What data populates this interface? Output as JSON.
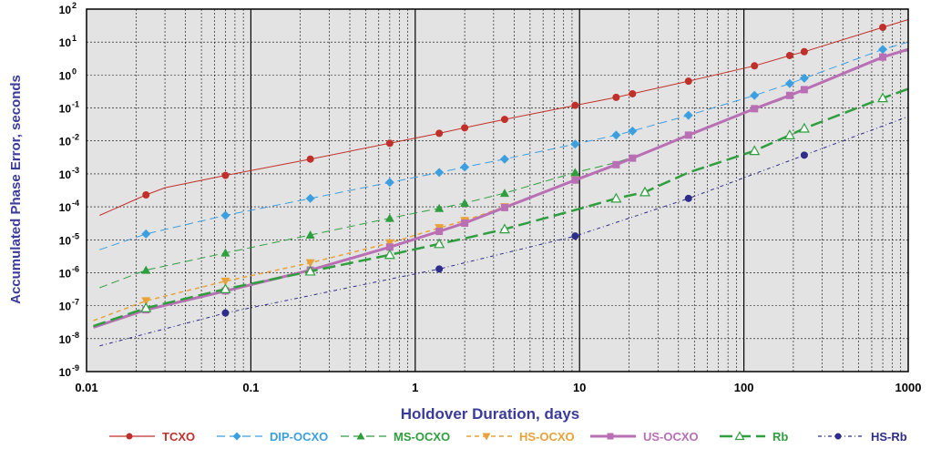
{
  "chart_data": {
    "type": "line",
    "xscale": "log",
    "yscale": "log",
    "xlim": [
      0.01,
      1000
    ],
    "ylim": [
      1e-09,
      100
    ],
    "xlabel": "Holdover Duration, days",
    "ylabel": "Accumulated Phase Error, seconds",
    "xlabel_color": "#3b3b9a",
    "ylabel_color": "#3b3b9a",
    "grid": true,
    "plot_background": "#e3e3e3",
    "legend_position": "bottom",
    "x_ticks": [
      {
        "value": 0.01,
        "label": "0.01"
      },
      {
        "value": 0.1,
        "label": "0.1"
      },
      {
        "value": 1,
        "label": "1"
      },
      {
        "value": 10,
        "label": "10"
      },
      {
        "value": 100,
        "label": "100"
      },
      {
        "value": 1000,
        "label": "1000"
      }
    ],
    "y_ticks": [
      {
        "value": 1e-09,
        "base": "10",
        "exp": "-9"
      },
      {
        "value": 1e-08,
        "base": "10",
        "exp": "-8"
      },
      {
        "value": 1e-07,
        "base": "10",
        "exp": "-7"
      },
      {
        "value": 1e-06,
        "base": "10",
        "exp": "-6"
      },
      {
        "value": 1e-05,
        "base": "10",
        "exp": "-5"
      },
      {
        "value": 0.0001,
        "base": "10",
        "exp": "-4"
      },
      {
        "value": 0.001,
        "base": "10",
        "exp": "-3"
      },
      {
        "value": 0.01,
        "base": "10",
        "exp": "-2"
      },
      {
        "value": 0.1,
        "base": "10",
        "exp": "-1"
      },
      {
        "value": 1,
        "base": "10",
        "exp": "0"
      },
      {
        "value": 10,
        "base": "10",
        "exp": "1"
      },
      {
        "value": 100,
        "base": "10",
        "exp": "2"
      }
    ],
    "series": [
      {
        "name": "TCXO",
        "color": "#c0302a",
        "marker": "circle",
        "dash": "",
        "width": 1,
        "line": [
          [
            0.012,
            5.5e-05
          ],
          [
            0.023,
            0.00023
          ],
          [
            0.03,
            0.00038
          ],
          [
            0.07,
            0.0009
          ],
          [
            0.23,
            0.0028
          ],
          [
            0.7,
            0.0085
          ],
          [
            1.4,
            0.017
          ],
          [
            2,
            0.025
          ],
          [
            3.5,
            0.045
          ],
          [
            9.4,
            0.12
          ],
          [
            16.7,
            0.21
          ],
          [
            21,
            0.27
          ],
          [
            46,
            0.65
          ],
          [
            116,
            1.9
          ],
          [
            190,
            3.9
          ],
          [
            233,
            5.1
          ],
          [
            700,
            28
          ],
          [
            1000,
            48
          ]
        ],
        "markers": [
          [
            0.023,
            0.00023
          ],
          [
            0.07,
            0.0009
          ],
          [
            0.23,
            0.0028
          ],
          [
            0.7,
            0.0085
          ],
          [
            1.4,
            0.017
          ],
          [
            2,
            0.025
          ],
          [
            3.5,
            0.045
          ],
          [
            9.4,
            0.12
          ],
          [
            16.7,
            0.21
          ],
          [
            21,
            0.27
          ],
          [
            46,
            0.65
          ],
          [
            116,
            1.9
          ],
          [
            190,
            3.9
          ],
          [
            233,
            5.1
          ],
          [
            700,
            28
          ]
        ]
      },
      {
        "name": "DIP-OCXO",
        "color": "#3c9fe0",
        "marker": "diamond",
        "dash": "9 5",
        "width": 1,
        "line": [
          [
            0.012,
            5e-06
          ],
          [
            0.023,
            1.5e-05
          ],
          [
            0.07,
            5.5e-05
          ],
          [
            0.23,
            0.00018
          ],
          [
            0.7,
            0.00055
          ],
          [
            1.4,
            0.0011
          ],
          [
            2,
            0.0016
          ],
          [
            3.5,
            0.0028
          ],
          [
            9.4,
            0.008
          ],
          [
            16.7,
            0.015
          ],
          [
            21,
            0.02
          ],
          [
            46,
            0.06
          ],
          [
            116,
            0.24
          ],
          [
            190,
            0.55
          ],
          [
            233,
            0.8
          ],
          [
            700,
            6
          ],
          [
            1000,
            10
          ]
        ],
        "markers": [
          [
            0.023,
            1.5e-05
          ],
          [
            0.07,
            5.5e-05
          ],
          [
            0.23,
            0.00018
          ],
          [
            0.7,
            0.00055
          ],
          [
            1.4,
            0.0011
          ],
          [
            2,
            0.0016
          ],
          [
            3.5,
            0.0028
          ],
          [
            9.4,
            0.008
          ],
          [
            16.7,
            0.015
          ],
          [
            21,
            0.02
          ],
          [
            46,
            0.06
          ],
          [
            116,
            0.24
          ],
          [
            190,
            0.55
          ],
          [
            233,
            0.8
          ],
          [
            700,
            6
          ]
        ]
      },
      {
        "name": "MS-OCXO",
        "color": "#2e9e3e",
        "marker": "triangle",
        "dash": "9 5",
        "width": 1,
        "line": [
          [
            0.012,
            3.5e-07
          ],
          [
            0.023,
            1.2e-06
          ],
          [
            0.07,
            4e-06
          ],
          [
            0.23,
            1.4e-05
          ],
          [
            0.7,
            4.5e-05
          ],
          [
            1.4,
            9e-05
          ],
          [
            2,
            0.00013
          ],
          [
            3.5,
            0.00026
          ],
          [
            9.4,
            0.0011
          ],
          [
            16.7,
            0.0022
          ],
          [
            21,
            0.0032
          ],
          [
            46,
            0.015
          ],
          [
            116,
            0.09
          ],
          [
            190,
            0.22
          ],
          [
            233,
            0.35
          ],
          [
            700,
            3.5
          ],
          [
            1000,
            5.5
          ]
        ],
        "markers": [
          [
            0.023,
            1.2e-06
          ],
          [
            0.07,
            4e-06
          ],
          [
            0.23,
            1.4e-05
          ],
          [
            0.7,
            4.5e-05
          ],
          [
            1.4,
            9e-05
          ],
          [
            2,
            0.00013
          ],
          [
            3.5,
            0.00026
          ],
          [
            9.4,
            0.0011
          ]
        ]
      },
      {
        "name": "HS-OCXO",
        "color": "#e8a23a",
        "marker": "triangle-down",
        "dash": "5 4",
        "width": 1.5,
        "line": [
          [
            0.011,
            3.5e-08
          ],
          [
            0.023,
            1.4e-07
          ],
          [
            0.07,
            5.5e-07
          ],
          [
            0.23,
            2e-06
          ],
          [
            0.7,
            8e-06
          ],
          [
            1.4,
            2.3e-05
          ],
          [
            2,
            3.8e-05
          ],
          [
            3.5,
            0.0001
          ],
          [
            9.4,
            0.00065
          ],
          [
            16.7,
            0.0019
          ],
          [
            21,
            0.003
          ],
          [
            46,
            0.015
          ],
          [
            116,
            0.095
          ],
          [
            190,
            0.24
          ],
          [
            233,
            0.36
          ],
          [
            700,
            3.5
          ],
          [
            1000,
            6
          ]
        ],
        "markers": [
          [
            0.023,
            1.4e-07
          ],
          [
            0.07,
            5.5e-07
          ],
          [
            0.23,
            2e-06
          ],
          [
            0.7,
            8e-06
          ],
          [
            1.4,
            2.3e-05
          ],
          [
            2,
            3.8e-05
          ],
          [
            3.5,
            0.0001
          ],
          [
            9.4,
            0.00065
          ]
        ]
      },
      {
        "name": "US-OCXO",
        "color": "#b86fb4",
        "marker": "square",
        "dash": "",
        "width": 3,
        "line": [
          [
            0.011,
            2.2e-08
          ],
          [
            0.023,
            7.5e-08
          ],
          [
            0.07,
            2.8e-07
          ],
          [
            0.23,
            1.2e-06
          ],
          [
            0.7,
            6e-06
          ],
          [
            1.4,
            1.8e-05
          ],
          [
            2,
            3.2e-05
          ],
          [
            3.5,
            9.5e-05
          ],
          [
            9.4,
            0.00065
          ],
          [
            16.7,
            0.0019
          ],
          [
            21,
            0.003
          ],
          [
            46,
            0.015
          ],
          [
            116,
            0.095
          ],
          [
            190,
            0.24
          ],
          [
            233,
            0.36
          ],
          [
            700,
            3.5
          ],
          [
            1000,
            6
          ]
        ],
        "markers": [
          [
            0.023,
            7.5e-08
          ],
          [
            0.07,
            2.8e-07
          ],
          [
            0.23,
            1.2e-06
          ],
          [
            0.7,
            6e-06
          ],
          [
            1.4,
            1.8e-05
          ],
          [
            2,
            3.2e-05
          ],
          [
            3.5,
            9.5e-05
          ],
          [
            9.4,
            0.00065
          ],
          [
            16.7,
            0.0019
          ],
          [
            21,
            0.003
          ],
          [
            46,
            0.015
          ],
          [
            116,
            0.095
          ],
          [
            190,
            0.24
          ],
          [
            233,
            0.36
          ],
          [
            700,
            3.5
          ]
        ]
      },
      {
        "name": "Rb",
        "color": "#2e9e3e",
        "marker": "triangle-open",
        "dash": "14 6",
        "width": 2.5,
        "line": [
          [
            0.011,
            2.4e-08
          ],
          [
            0.023,
            8.5e-08
          ],
          [
            0.07,
            3.2e-07
          ],
          [
            0.23,
            1.1e-06
          ],
          [
            0.7,
            3.5e-06
          ],
          [
            1.4,
            7.5e-06
          ],
          [
            2,
            1.1e-05
          ],
          [
            3.5,
            2.1e-05
          ],
          [
            9.4,
            8e-05
          ],
          [
            16.7,
            0.00018
          ],
          [
            25,
            0.00028
          ],
          [
            46,
            0.0011
          ],
          [
            116,
            0.005
          ],
          [
            190,
            0.015
          ],
          [
            233,
            0.024
          ],
          [
            700,
            0.2
          ],
          [
            1000,
            0.38
          ]
        ],
        "markers": [
          [
            0.023,
            8.5e-08
          ],
          [
            0.07,
            3.2e-07
          ],
          [
            0.23,
            1.1e-06
          ],
          [
            0.7,
            3.5e-06
          ],
          [
            1.4,
            7.5e-06
          ],
          [
            3.5,
            2.1e-05
          ],
          [
            16.7,
            0.00018
          ],
          [
            25,
            0.00028
          ],
          [
            116,
            0.005
          ],
          [
            190,
            0.015
          ],
          [
            233,
            0.024
          ],
          [
            700,
            0.2
          ]
        ]
      },
      {
        "name": "HS-Rb",
        "color": "#2e2e8a",
        "marker": "circle",
        "dash": "4 3 1 3",
        "width": 1,
        "line": [
          [
            0.012,
            6e-09
          ],
          [
            0.07,
            6e-08
          ],
          [
            1.4,
            1.3e-06
          ],
          [
            9.4,
            1.3e-05
          ],
          [
            46,
            0.00018
          ],
          [
            233,
            0.0037
          ],
          [
            1000,
            0.055
          ]
        ],
        "markers": [
          [
            0.07,
            6e-08
          ],
          [
            1.4,
            1.3e-06
          ],
          [
            9.4,
            1.3e-05
          ],
          [
            46,
            0.00018
          ],
          [
            233,
            0.0037
          ]
        ]
      }
    ]
  }
}
